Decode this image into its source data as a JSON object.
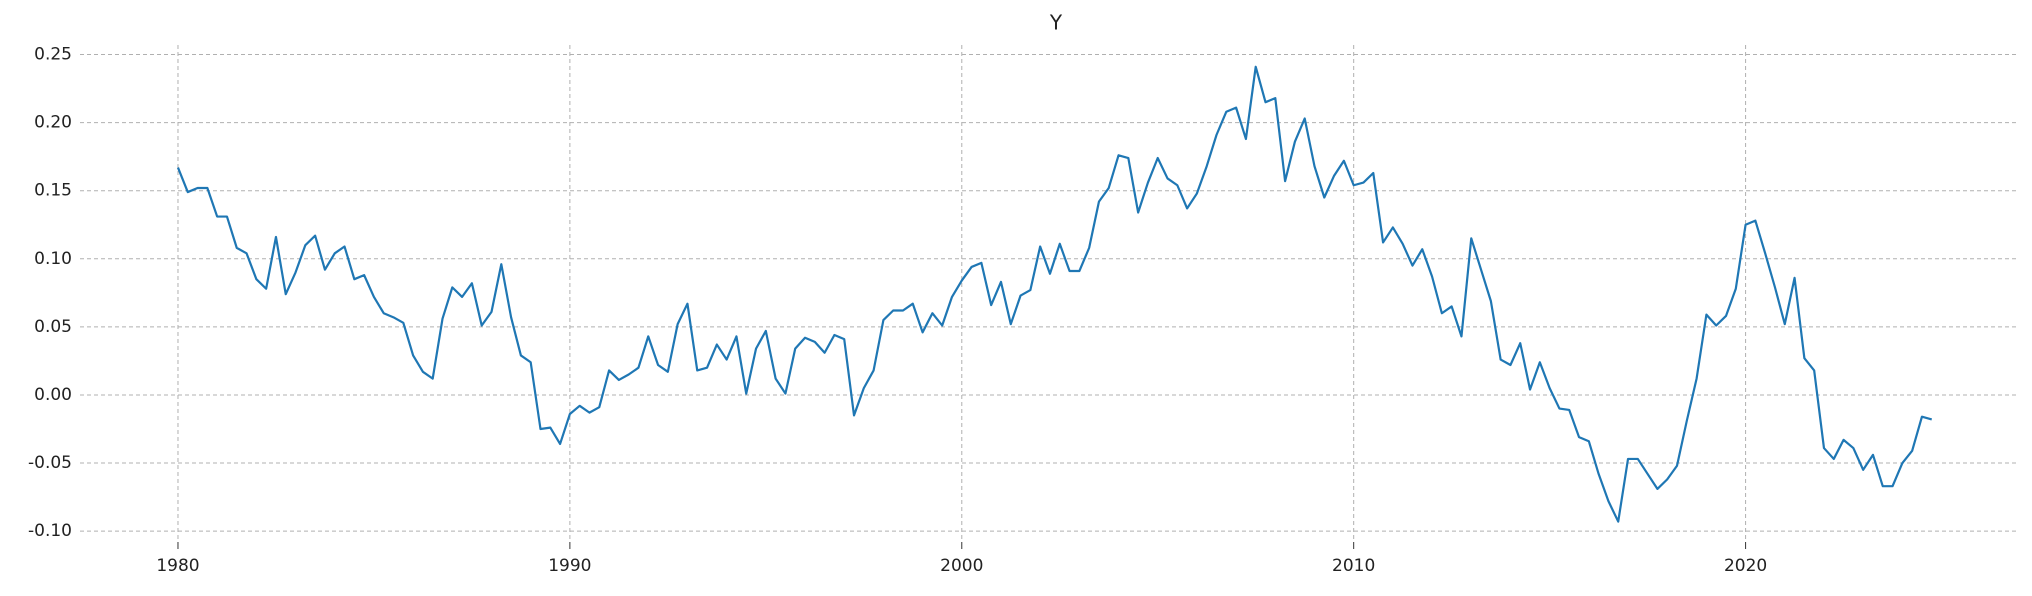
{
  "chart_data": {
    "type": "line",
    "title": "Y",
    "x": [
      1980,
      1980.25,
      1980.5,
      1980.75,
      1981,
      1981.25,
      1981.5,
      1981.75,
      1982,
      1982.25,
      1982.5,
      1982.75,
      1983,
      1983.25,
      1983.5,
      1983.75,
      1984,
      1984.25,
      1984.5,
      1984.75,
      1985,
      1985.25,
      1985.5,
      1985.75,
      1986,
      1986.25,
      1986.5,
      1986.75,
      1987,
      1987.25,
      1987.5,
      1987.75,
      1988,
      1988.25,
      1988.5,
      1988.75,
      1989,
      1989.25,
      1989.5,
      1989.75,
      1990,
      1990.25,
      1990.5,
      1990.75,
      1991,
      1991.25,
      1991.5,
      1991.75,
      1992,
      1992.25,
      1992.5,
      1992.75,
      1993,
      1993.25,
      1993.5,
      1993.75,
      1994,
      1994.25,
      1994.5,
      1994.75,
      1995,
      1995.25,
      1995.5,
      1995.75,
      1996,
      1996.25,
      1996.5,
      1996.75,
      1997,
      1997.25,
      1997.5,
      1997.75,
      1998,
      1998.25,
      1998.5,
      1998.75,
      1999,
      1999.25,
      1999.5,
      1999.75,
      2000,
      2000.25,
      2000.5,
      2000.75,
      2001,
      2001.25,
      2001.5,
      2001.75,
      2002,
      2002.25,
      2002.5,
      2002.75,
      2003,
      2003.25,
      2003.5,
      2003.75,
      2004,
      2004.25,
      2004.5,
      2004.75,
      2005,
      2005.25,
      2005.5,
      2005.75,
      2006,
      2006.25,
      2006.5,
      2006.75,
      2007,
      2007.25,
      2007.5,
      2007.75,
      2008,
      2008.25,
      2008.5,
      2008.75,
      2009,
      2009.25,
      2009.5,
      2009.75,
      2010,
      2010.25,
      2010.5,
      2010.75,
      2011,
      2011.25,
      2011.5,
      2011.75,
      2012,
      2012.25,
      2012.5,
      2012.75,
      2013,
      2013.25,
      2013.5,
      2013.75,
      2014,
      2014.25,
      2014.5,
      2014.75,
      2015,
      2015.25,
      2015.5,
      2015.75,
      2016,
      2016.25,
      2016.5,
      2016.75,
      2017,
      2017.25,
      2017.5,
      2017.75,
      2018,
      2018.25,
      2018.5,
      2018.75,
      2019,
      2019.25,
      2019.5,
      2019.75,
      2020,
      2020.25,
      2020.5,
      2020.75,
      2021,
      2021.25,
      2021.5,
      2021.75,
      2022,
      2022.25,
      2022.5,
      2022.75,
      2023,
      2023.25,
      2023.5,
      2023.75,
      2024,
      2024.25,
      2024.5,
      2024.75
    ],
    "series": [
      {
        "name": "Y",
        "color": "#1f77b4",
        "values": [
          0.167,
          0.149,
          0.152,
          0.152,
          0.131,
          0.131,
          0.108,
          0.104,
          0.085,
          0.078,
          0.116,
          0.074,
          0.09,
          0.11,
          0.117,
          0.092,
          0.104,
          0.109,
          0.085,
          0.088,
          0.072,
          0.06,
          0.057,
          0.053,
          0.029,
          0.017,
          0.012,
          0.056,
          0.079,
          0.072,
          0.082,
          0.051,
          0.061,
          0.096,
          0.057,
          0.029,
          0.024,
          -0.025,
          -0.024,
          -0.036,
          -0.014,
          -0.008,
          -0.013,
          -0.009,
          0.018,
          0.011,
          0.015,
          0.02,
          0.043,
          0.022,
          0.017,
          0.052,
          0.067,
          0.018,
          0.02,
          0.037,
          0.026,
          0.043,
          0.001,
          0.034,
          0.047,
          0.012,
          0.001,
          0.034,
          0.042,
          0.039,
          0.031,
          0.044,
          0.041,
          -0.015,
          0.005,
          0.018,
          0.055,
          0.062,
          0.062,
          0.067,
          0.046,
          0.06,
          0.051,
          0.072,
          0.084,
          0.094,
          0.097,
          0.066,
          0.083,
          0.052,
          0.073,
          0.077,
          0.109,
          0.089,
          0.111,
          0.091,
          0.091,
          0.108,
          0.142,
          0.152,
          0.176,
          0.174,
          0.134,
          0.156,
          0.174,
          0.159,
          0.154,
          0.137,
          0.148,
          0.168,
          0.191,
          0.208,
          0.211,
          0.188,
          0.241,
          0.215,
          0.218,
          0.157,
          0.186,
          0.203,
          0.168,
          0.145,
          0.161,
          0.172,
          0.154,
          0.156,
          0.163,
          0.112,
          0.123,
          0.111,
          0.095,
          0.107,
          0.087,
          0.06,
          0.065,
          0.043,
          0.115,
          0.092,
          0.069,
          0.026,
          0.022,
          0.038,
          0.004,
          0.024,
          0.005,
          -0.01,
          -0.011,
          -0.031,
          -0.034,
          -0.058,
          -0.078,
          -0.093,
          -0.047,
          -0.047,
          -0.058,
          -0.069,
          -0.062,
          -0.052,
          -0.019,
          0.012,
          0.059,
          0.051,
          0.058,
          0.078,
          0.125,
          0.128,
          0.104,
          0.079,
          0.052,
          0.086,
          0.027,
          0.018,
          -0.039,
          -0.047,
          -0.033,
          -0.039,
          -0.055,
          -0.044,
          -0.067,
          -0.067,
          -0.05,
          -0.041,
          -0.016,
          -0.018
        ]
      }
    ],
    "xlim": [
      1977.5,
      2026.9
    ],
    "xticks": [
      1980,
      1990,
      2000,
      2010,
      2020
    ],
    "ylim": [
      -0.108,
      0.257
    ],
    "yticks": [
      {
        "value": -0.1,
        "label": "-0.10"
      },
      -0.05,
      {
        "value": 0,
        "label": "0.00"
      },
      0.05,
      {
        "value": 0.1,
        "label": "0.10"
      },
      0.15,
      {
        "value": 0.2,
        "label": "0.20"
      },
      0.25
    ],
    "grid": true
  }
}
